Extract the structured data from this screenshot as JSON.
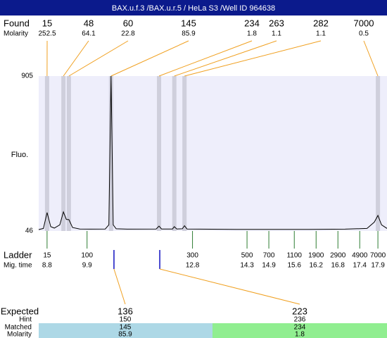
{
  "title": "BAX.u.f.3 /BAX.u.r.5 / HeLa S3 /Well ID 964638",
  "found": {
    "label": "Found",
    "sublabel": "Molarity",
    "peaks": [
      {
        "size": 15,
        "molarity": 252.5,
        "time": 8.8
      },
      {
        "size": 48,
        "molarity": 64.1,
        "time": 9.25
      },
      {
        "size": 60,
        "molarity": 22.8,
        "time": 9.4
      },
      {
        "size": 145,
        "molarity": 85.9,
        "time": 10.56
      },
      {
        "size": 234,
        "molarity": 1.8,
        "time": 11.88
      },
      {
        "size": 263,
        "molarity": 1.1,
        "time": 12.3
      },
      {
        "size": 282,
        "molarity": 1.1,
        "time": 12.58
      },
      {
        "size": 7000,
        "molarity": 0.5,
        "time": 17.9
      }
    ]
  },
  "plot": {
    "y_label": "Fluo.",
    "ylim": [
      46,
      905
    ],
    "yticks": [
      46,
      905
    ],
    "xlim": [
      8.57,
      18.15
    ],
    "trace": {
      "time": [
        8.57,
        8.7,
        8.8,
        8.9,
        9.0,
        9.15,
        9.25,
        9.33,
        9.4,
        9.5,
        9.7,
        10.0,
        10.4,
        10.5,
        10.56,
        10.62,
        10.7,
        11.0,
        11.8,
        11.88,
        11.95,
        12.25,
        12.3,
        12.37,
        12.52,
        12.58,
        12.65,
        13.0,
        14.0,
        15.0,
        16.0,
        17.0,
        17.6,
        17.8,
        17.9,
        18.0,
        18.15
      ],
      "fluo": [
        54,
        60,
        148,
        70,
        62,
        80,
        152,
        110,
        109,
        65,
        57,
        56,
        57,
        80,
        905,
        80,
        58,
        56,
        57,
        73,
        57,
        57,
        70,
        57,
        58,
        75,
        57,
        56,
        55,
        55,
        55,
        56,
        60,
        95,
        132,
        80,
        60
      ]
    }
  },
  "ladder": {
    "label": "Ladder",
    "sublabel": "Mig. time",
    "sizes": [
      15,
      100,
      300,
      500,
      700,
      1100,
      1900,
      2900,
      4900,
      7000
    ],
    "times": [
      8.8,
      9.9,
      12.8,
      14.3,
      14.9,
      15.6,
      16.2,
      16.8,
      17.4,
      17.9
    ]
  },
  "expected": {
    "label": "Expected",
    "hint_label": "Hint",
    "matched_label": "Matched",
    "molarity_label": "Molarity",
    "items": [
      {
        "size": 136,
        "hint": 150,
        "matched": 145,
        "molarity": 85.9,
        "time": 10.64
      },
      {
        "size": 223,
        "hint": 236,
        "matched": 234,
        "molarity": 1.8,
        "time": 11.9
      }
    ]
  }
}
